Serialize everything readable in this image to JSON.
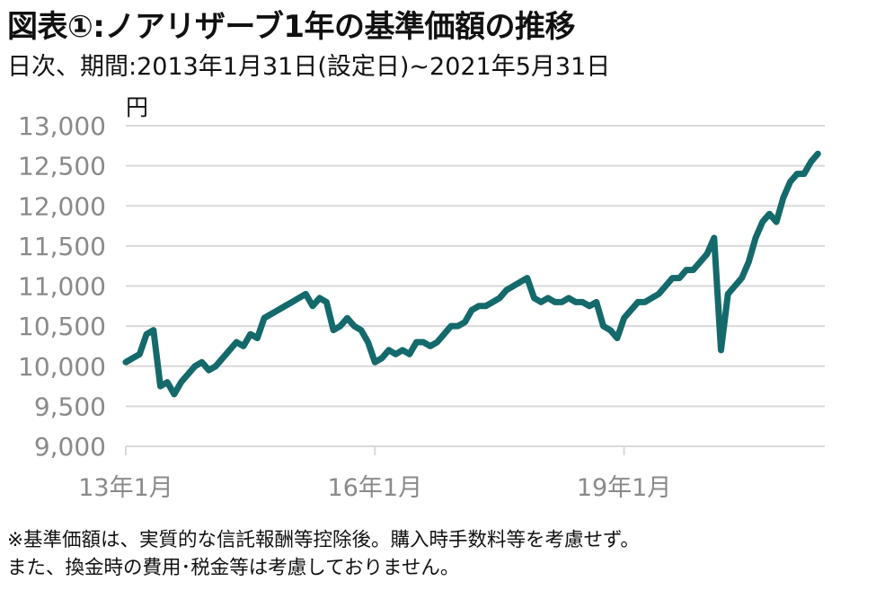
{
  "header": {
    "title": "図表①:ノアリザーブ1年の基準価額の推移",
    "subtitle": "日次、期間:2013年1月31日(設定日)~2021年5月31日"
  },
  "chart_data": {
    "type": "line",
    "unit": "円",
    "ylim": [
      9000,
      13000
    ],
    "xlim": [
      "2013-01",
      "2021-06"
    ],
    "y_ticks": [
      "13,000",
      "12,500",
      "12,000",
      "11,500",
      "11,000",
      "10,500",
      "10,000",
      "9,500",
      "9,000"
    ],
    "x_ticks": [
      {
        "label": "13年1月",
        "x": "2013-01"
      },
      {
        "label": "16年1月",
        "x": "2016-01"
      },
      {
        "label": "19年1月",
        "x": "2019-01"
      }
    ],
    "grid": true,
    "line_color": "#14696b",
    "series": [
      {
        "x": [
          "2013-01",
          "2013-02",
          "2013-03",
          "2013-04",
          "2013-05",
          "2013-06",
          "2013-07",
          "2013-08",
          "2013-09",
          "2013-10",
          "2013-11",
          "2013-12",
          "2014-01",
          "2014-02",
          "2014-03",
          "2014-04",
          "2014-05",
          "2014-06",
          "2014-07",
          "2014-08",
          "2014-09",
          "2014-10",
          "2014-11",
          "2014-12",
          "2015-01",
          "2015-02",
          "2015-03",
          "2015-04",
          "2015-05",
          "2015-06",
          "2015-07",
          "2015-08",
          "2015-09",
          "2015-10",
          "2015-11",
          "2015-12",
          "2016-01",
          "2016-02",
          "2016-03",
          "2016-04",
          "2016-05",
          "2016-06",
          "2016-07",
          "2016-08",
          "2016-09",
          "2016-10",
          "2016-11",
          "2016-12",
          "2017-01",
          "2017-02",
          "2017-03",
          "2017-04",
          "2017-05",
          "2017-06",
          "2017-07",
          "2017-08",
          "2017-09",
          "2017-10",
          "2017-11",
          "2017-12",
          "2018-01",
          "2018-02",
          "2018-03",
          "2018-04",
          "2018-05",
          "2018-06",
          "2018-07",
          "2018-08",
          "2018-09",
          "2018-10",
          "2018-11",
          "2018-12",
          "2019-01",
          "2019-02",
          "2019-03",
          "2019-04",
          "2019-05",
          "2019-06",
          "2019-07",
          "2019-08",
          "2019-09",
          "2019-10",
          "2019-11",
          "2019-12",
          "2020-01",
          "2020-02",
          "2020-03",
          "2020-04",
          "2020-05",
          "2020-06",
          "2020-07",
          "2020-08",
          "2020-09",
          "2020-10",
          "2020-11",
          "2020-12",
          "2021-01",
          "2021-02",
          "2021-03",
          "2021-04",
          "2021-05"
        ],
        "y": [
          10050,
          10100,
          10150,
          10400,
          10450,
          9750,
          9800,
          9650,
          9800,
          9900,
          10000,
          10050,
          9950,
          10000,
          10100,
          10200,
          10300,
          10250,
          10400,
          10350,
          10600,
          10650,
          10700,
          10750,
          10800,
          10850,
          10900,
          10750,
          10850,
          10800,
          10450,
          10500,
          10600,
          10500,
          10450,
          10300,
          10050,
          10100,
          10200,
          10150,
          10200,
          10150,
          10300,
          10300,
          10250,
          10300,
          10400,
          10500,
          10500,
          10550,
          10700,
          10750,
          10750,
          10800,
          10850,
          10950,
          11000,
          11050,
          11100,
          10850,
          10800,
          10850,
          10800,
          10800,
          10850,
          10800,
          10800,
          10750,
          10800,
          10500,
          10450,
          10350,
          10600,
          10700,
          10800,
          10800,
          10850,
          10900,
          11000,
          11100,
          11100,
          11200,
          11200,
          11300,
          11400,
          11600,
          10200,
          10900,
          11000,
          11100,
          11300,
          11600,
          11800,
          11900,
          11800,
          12100,
          12300,
          12400,
          12400,
          12550,
          12650
        ]
      }
    ]
  },
  "footnote": {
    "line1": "※基準価額は、実質的な信託報酬等控除後。購入時手数料等を考慮せず。",
    "line2": "また、換金時の費用･税金等は考慮しておりません。"
  }
}
